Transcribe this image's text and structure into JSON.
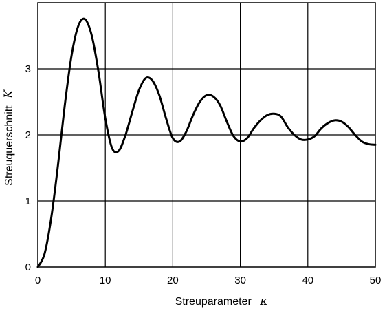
{
  "chart_data": {
    "type": "line",
    "xlabel": "Streuparameter",
    "xlabel_symbol": "κ",
    "ylabel": "Streuquerschnitt",
    "ylabel_symbol": "K",
    "xlim": [
      0,
      50
    ],
    "ylim": [
      0,
      4
    ],
    "x_ticks": [
      "0",
      "10",
      "20",
      "30",
      "40",
      "50"
    ],
    "y_ticks": [
      "0",
      "1",
      "2",
      "3"
    ],
    "grid": true,
    "legend": "none",
    "line_color": "#000000",
    "series": [
      {
        "x": [
          0,
          1,
          2,
          3,
          4,
          5,
          6,
          7,
          8,
          9,
          10,
          11,
          12,
          13,
          14,
          15,
          16,
          17,
          18,
          19,
          20,
          21,
          22,
          23,
          24,
          25,
          26,
          27,
          28,
          29,
          30,
          31,
          32,
          33,
          34,
          35,
          36,
          37,
          38,
          39,
          40,
          41,
          42,
          43,
          44,
          45,
          46,
          47,
          48,
          49,
          50
        ],
        "y": [
          0,
          0.2,
          0.75,
          1.55,
          2.45,
          3.2,
          3.65,
          3.75,
          3.5,
          2.95,
          2.25,
          1.8,
          1.76,
          2.0,
          2.35,
          2.68,
          2.86,
          2.82,
          2.6,
          2.25,
          1.95,
          1.9,
          2.05,
          2.3,
          2.5,
          2.6,
          2.58,
          2.45,
          2.2,
          1.98,
          1.9,
          1.95,
          2.1,
          2.22,
          2.3,
          2.32,
          2.28,
          2.12,
          2.0,
          1.93,
          1.93,
          1.98,
          2.1,
          2.18,
          2.22,
          2.2,
          2.12,
          2.0,
          1.9,
          1.86,
          1.85
        ]
      }
    ]
  }
}
